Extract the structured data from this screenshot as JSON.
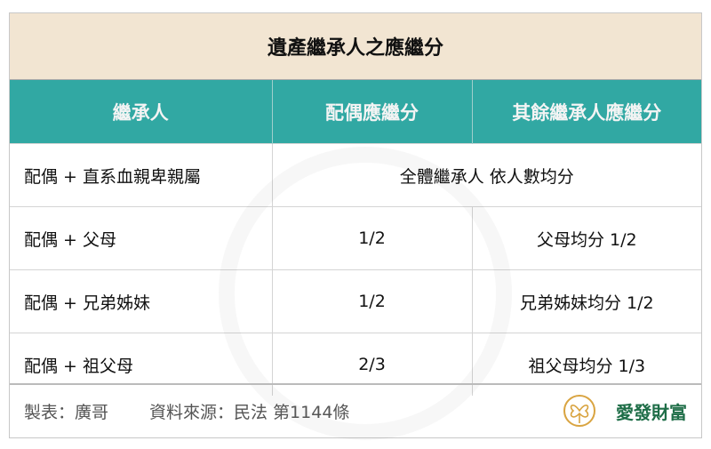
{
  "title": "遺產繼承人之應繼分",
  "headers": [
    "繼承人",
    "配偶應繼分",
    "其餘繼承人應繼分"
  ],
  "rows": [
    {
      "heir": "配偶 + 直系血親卑親屬",
      "merged": "全體繼承人 依人數均分"
    },
    {
      "heir": "配偶 + 父母",
      "spouse": "1/2",
      "others": "父母均分 1/2"
    },
    {
      "heir": "配偶 + 兄弟姊妹",
      "spouse": "1/2",
      "others": "兄弟姊妹均分 1/2"
    },
    {
      "heir": "配偶 + 祖父母",
      "spouse": "2/3",
      "others": "祖父母均分 1/3"
    }
  ],
  "footer": {
    "maker": "製表：廣哥",
    "source": "資料來源：民法 第1144條",
    "logo_text": "愛發財富"
  },
  "colors": {
    "title_bg": "#f2e5d2",
    "header_bg": "#31a8a3",
    "logo_gold": "#d9a441",
    "logo_green": "#1f6e48"
  }
}
